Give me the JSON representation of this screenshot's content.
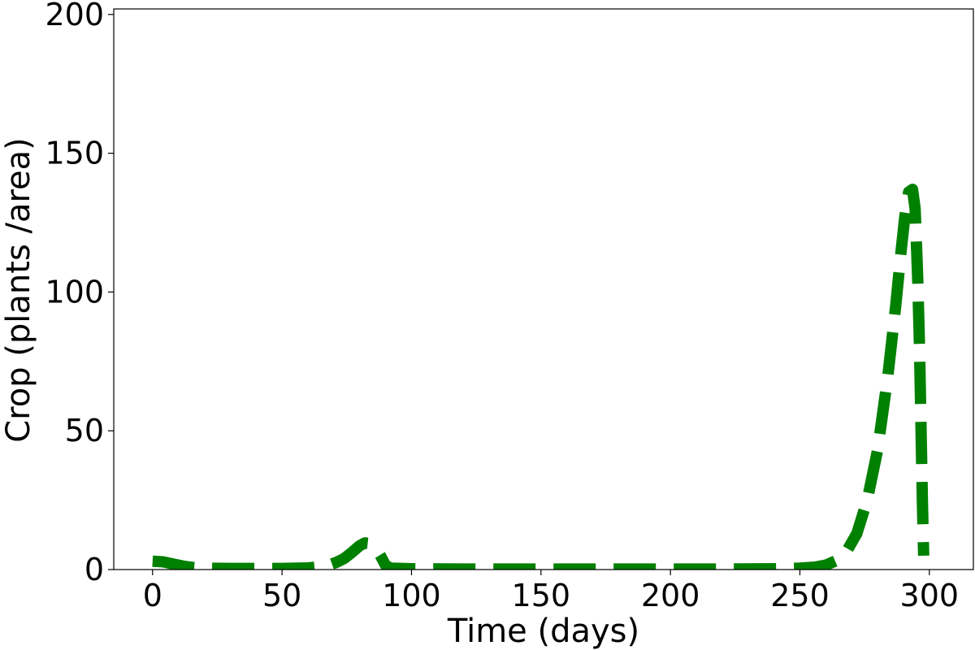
{
  "chart_data": {
    "type": "line",
    "title": "",
    "xlabel": "Time (days)",
    "ylabel": "Crop (plants /area)",
    "xlim": [
      -15,
      317
    ],
    "ylim": [
      0,
      202
    ],
    "x_ticks": [
      0,
      50,
      100,
      150,
      200,
      250,
      300
    ],
    "y_ticks": [
      0,
      50,
      100,
      150,
      200
    ],
    "grid": false,
    "legend": "none",
    "series": [
      {
        "color": "#008000",
        "line_style": "dashed",
        "points": [
          [
            0,
            3
          ],
          [
            4,
            2.8
          ],
          [
            8,
            2
          ],
          [
            12,
            1.2
          ],
          [
            16,
            0.7
          ],
          [
            20,
            0.5
          ],
          [
            30,
            0.4
          ],
          [
            40,
            0.4
          ],
          [
            50,
            0.4
          ],
          [
            60,
            0.6
          ],
          [
            65,
            1
          ],
          [
            68,
            1.6
          ],
          [
            71,
            2.6
          ],
          [
            74,
            4
          ],
          [
            77,
            6.2
          ],
          [
            80,
            8.6
          ],
          [
            82,
            9.6
          ],
          [
            84,
            9.4
          ],
          [
            86,
            8
          ],
          [
            88,
            5
          ],
          [
            90,
            1.5
          ],
          [
            92,
            0.5
          ],
          [
            100,
            0.3
          ],
          [
            120,
            0.2
          ],
          [
            150,
            0.2
          ],
          [
            180,
            0.2
          ],
          [
            200,
            0.2
          ],
          [
            220,
            0.2
          ],
          [
            240,
            0.3
          ],
          [
            250,
            0.5
          ],
          [
            256,
            0.9
          ],
          [
            260,
            1.6
          ],
          [
            264,
            3.2
          ],
          [
            268,
            6.5
          ],
          [
            272,
            13
          ],
          [
            276,
            25
          ],
          [
            280,
            43
          ],
          [
            284,
            70
          ],
          [
            287,
            95
          ],
          [
            289,
            114
          ],
          [
            290.5,
            127
          ],
          [
            292,
            136
          ],
          [
            293.5,
            137
          ],
          [
            294.5,
            130
          ],
          [
            295.5,
            105
          ],
          [
            296.2,
            80
          ],
          [
            296.8,
            50
          ],
          [
            297.3,
            25
          ],
          [
            297.8,
            5
          ]
        ]
      }
    ]
  }
}
